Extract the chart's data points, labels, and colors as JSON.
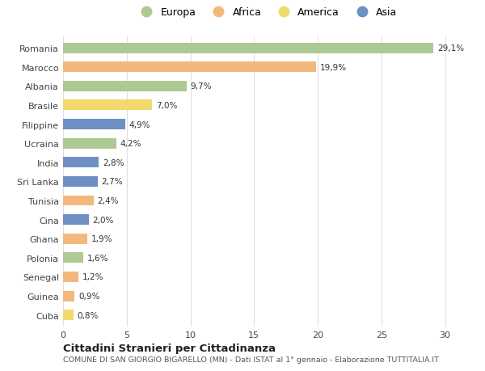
{
  "categories": [
    "Romania",
    "Marocco",
    "Albania",
    "Brasile",
    "Filippine",
    "Ucraina",
    "India",
    "Sri Lanka",
    "Tunisia",
    "Cina",
    "Ghana",
    "Polonia",
    "Senegal",
    "Guinea",
    "Cuba"
  ],
  "values": [
    29.1,
    19.9,
    9.7,
    7.0,
    4.9,
    4.2,
    2.8,
    2.7,
    2.4,
    2.0,
    1.9,
    1.6,
    1.2,
    0.9,
    0.8
  ],
  "labels": [
    "29,1%",
    "19,9%",
    "9,7%",
    "7,0%",
    "4,9%",
    "4,2%",
    "2,8%",
    "2,7%",
    "2,4%",
    "2,0%",
    "1,9%",
    "1,6%",
    "1,2%",
    "0,9%",
    "0,8%"
  ],
  "continent": [
    "Europa",
    "Africa",
    "Europa",
    "America",
    "Asia",
    "Europa",
    "Asia",
    "Asia",
    "Africa",
    "Asia",
    "Africa",
    "Europa",
    "Africa",
    "Africa",
    "America"
  ],
  "colors": {
    "Europa": "#adc994",
    "Africa": "#f2b87e",
    "America": "#f2d96b",
    "Asia": "#6e8fc4"
  },
  "legend_order": [
    "Europa",
    "Africa",
    "America",
    "Asia"
  ],
  "xlim": [
    0,
    32
  ],
  "xticks": [
    0,
    5,
    10,
    15,
    20,
    25,
    30
  ],
  "title": "Cittadini Stranieri per Cittadinanza",
  "subtitle": "COMUNE DI SAN GIORGIO BIGARELLO (MN) - Dati ISTAT al 1° gennaio - Elaborazione TUTTITALIA.IT",
  "bg_color": "#ffffff",
  "grid_color": "#e0e0e0"
}
